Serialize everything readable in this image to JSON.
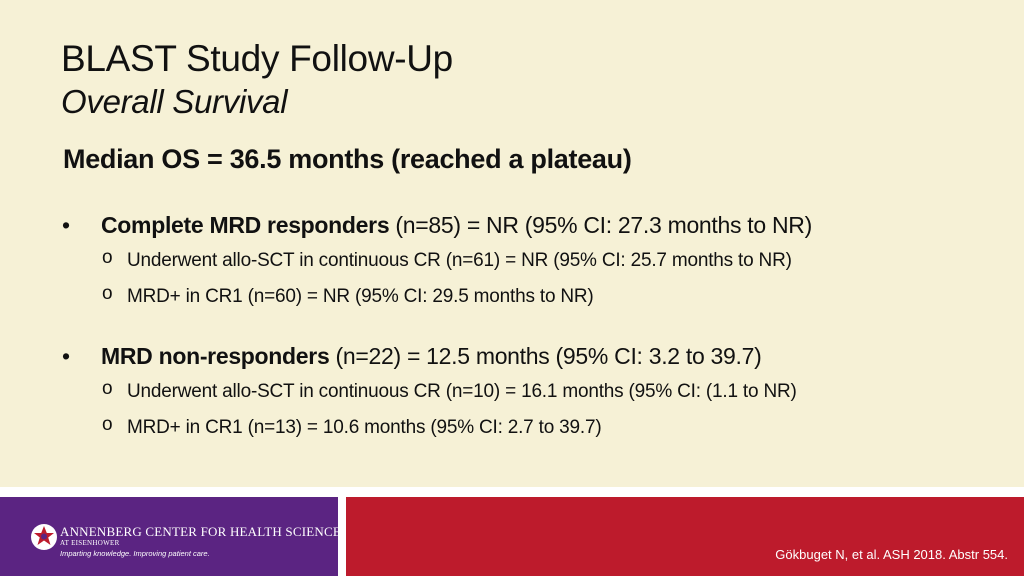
{
  "title": "BLAST Study Follow-Up",
  "subtitle": "Overall Survival",
  "headline": "Median OS = 36.5 months (reached a plateau)",
  "bullets": [
    {
      "bold": "Complete MRD responders",
      "rest": " (n=85) = NR (95% CI: 27.3 months to NR)",
      "subs": [
        "Underwent allo-SCT in continuous CR (n=61) = NR (95% CI: 25.7 months to NR)",
        "MRD+ in CR1 (n=60) = NR (95% CI: 29.5 months to NR)"
      ]
    },
    {
      "bold": "MRD non-responders",
      "rest": " (n=22) = 12.5 months (95% CI: 3.2 to 39.7)",
      "subs": [
        "Underwent allo-SCT in continuous CR (n=10) = 16.1 months (95% CI: (1.1 to NR)",
        "MRD+ in CR1 (n=13) = 10.6 months (95% CI: 2.7 to 39.7)"
      ]
    }
  ],
  "bullet_symbol": "•",
  "sub_symbol": "o",
  "footer": {
    "logo_name": "ANNENBERG CENTER FOR HEALTH SCIENCES",
    "logo_place": "AT EISENHOWER",
    "logo_tagline": "Imparting knowledge. Improving patient care.",
    "citation": "Gökbuget N, et al. ASH 2018. Abstr 554."
  },
  "colors": {
    "background": "#f6f1d6",
    "logo_panel": "#5b2482",
    "accent_red": "#bd1b2c"
  }
}
